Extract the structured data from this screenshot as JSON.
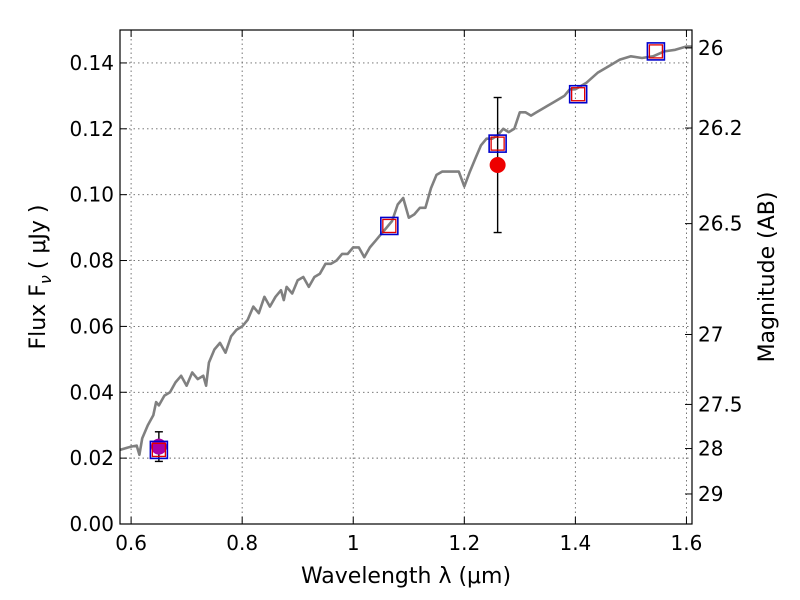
{
  "chart_data": {
    "type": "line",
    "xlabel": "Wavelength  λ (μm)",
    "ylabel": "Flux  F",
    "ylabel_sub": "ν",
    "ylabel_unit": "( μJy )",
    "y2label": "Magnitude (AB)",
    "xlim": [
      0.58,
      1.61
    ],
    "ylim": [
      0.0,
      0.15
    ],
    "grid": true,
    "x_ticks": [
      0.6,
      0.8,
      1.0,
      1.2,
      1.4,
      1.6
    ],
    "x_tick_labels": [
      "0.6",
      "0.8",
      "1",
      "1.2",
      "1.4",
      "1.6"
    ],
    "y_ticks": [
      0.0,
      0.02,
      0.04,
      0.06,
      0.08,
      0.1,
      0.12,
      0.14
    ],
    "y_tick_labels": [
      "0.00",
      "0.02",
      "0.04",
      "0.06",
      "0.08",
      "0.10",
      "0.12",
      "0.14"
    ],
    "y2_ticks": [
      26,
      26.2,
      26.5,
      27,
      27.5,
      28,
      29
    ],
    "y2_tick_labels": [
      "26",
      "26.2",
      "26.5",
      "27",
      "27.5",
      "28",
      "29"
    ],
    "colors": {
      "spectrum": "#808080",
      "model_points": "#e00000",
      "filter_box": "#0000cc",
      "red_point": "#ee0000",
      "magenta_point": "#aa00aa",
      "grid": "#666666"
    },
    "spectrum": [
      [
        0.58,
        0.0225
      ],
      [
        0.6,
        0.0235
      ],
      [
        0.61,
        0.0238
      ],
      [
        0.615,
        0.021
      ],
      [
        0.62,
        0.026
      ],
      [
        0.63,
        0.03
      ],
      [
        0.64,
        0.033
      ],
      [
        0.645,
        0.037
      ],
      [
        0.65,
        0.036
      ],
      [
        0.66,
        0.039
      ],
      [
        0.67,
        0.04
      ],
      [
        0.68,
        0.043
      ],
      [
        0.69,
        0.045
      ],
      [
        0.7,
        0.042
      ],
      [
        0.71,
        0.046
      ],
      [
        0.72,
        0.044
      ],
      [
        0.73,
        0.045
      ],
      [
        0.735,
        0.042
      ],
      [
        0.74,
        0.049
      ],
      [
        0.75,
        0.053
      ],
      [
        0.76,
        0.055
      ],
      [
        0.77,
        0.052
      ],
      [
        0.78,
        0.057
      ],
      [
        0.79,
        0.059
      ],
      [
        0.8,
        0.06
      ],
      [
        0.81,
        0.062
      ],
      [
        0.82,
        0.066
      ],
      [
        0.83,
        0.064
      ],
      [
        0.84,
        0.069
      ],
      [
        0.85,
        0.066
      ],
      [
        0.86,
        0.069
      ],
      [
        0.87,
        0.071
      ],
      [
        0.875,
        0.068
      ],
      [
        0.88,
        0.072
      ],
      [
        0.89,
        0.07
      ],
      [
        0.9,
        0.074
      ],
      [
        0.91,
        0.075
      ],
      [
        0.92,
        0.072
      ],
      [
        0.93,
        0.075
      ],
      [
        0.94,
        0.076
      ],
      [
        0.95,
        0.079
      ],
      [
        0.96,
        0.079
      ],
      [
        0.97,
        0.08
      ],
      [
        0.98,
        0.082
      ],
      [
        0.99,
        0.082
      ],
      [
        1.0,
        0.084
      ],
      [
        1.01,
        0.084
      ],
      [
        1.02,
        0.081
      ],
      [
        1.03,
        0.084
      ],
      [
        1.04,
        0.086
      ],
      [
        1.05,
        0.088
      ],
      [
        1.06,
        0.09
      ],
      [
        1.07,
        0.092
      ],
      [
        1.08,
        0.097
      ],
      [
        1.09,
        0.099
      ],
      [
        1.1,
        0.093
      ],
      [
        1.11,
        0.094
      ],
      [
        1.12,
        0.096
      ],
      [
        1.13,
        0.096
      ],
      [
        1.14,
        0.102
      ],
      [
        1.15,
        0.106
      ],
      [
        1.16,
        0.107
      ],
      [
        1.17,
        0.107
      ],
      [
        1.18,
        0.107
      ],
      [
        1.19,
        0.107
      ],
      [
        1.2,
        0.1025
      ],
      [
        1.21,
        0.107
      ],
      [
        1.22,
        0.111
      ],
      [
        1.23,
        0.115
      ],
      [
        1.24,
        0.117
      ],
      [
        1.25,
        0.117
      ],
      [
        1.26,
        0.118
      ],
      [
        1.27,
        0.12
      ],
      [
        1.28,
        0.119
      ],
      [
        1.29,
        0.12
      ],
      [
        1.3,
        0.125
      ],
      [
        1.31,
        0.125
      ],
      [
        1.32,
        0.124
      ],
      [
        1.33,
        0.125
      ],
      [
        1.34,
        0.126
      ],
      [
        1.35,
        0.127
      ],
      [
        1.36,
        0.128
      ],
      [
        1.37,
        0.129
      ],
      [
        1.38,
        0.13
      ],
      [
        1.39,
        0.132
      ],
      [
        1.4,
        0.132
      ],
      [
        1.42,
        0.134
      ],
      [
        1.44,
        0.137
      ],
      [
        1.46,
        0.139
      ],
      [
        1.48,
        0.141
      ],
      [
        1.5,
        0.142
      ],
      [
        1.52,
        0.1415
      ],
      [
        1.54,
        0.142
      ],
      [
        1.56,
        0.1435
      ],
      [
        1.58,
        0.144
      ],
      [
        1.6,
        0.145
      ],
      [
        1.61,
        0.145
      ]
    ],
    "filter_points": [
      {
        "x": 0.65,
        "model": 0.0225
      },
      {
        "x": 1.065,
        "model": 0.0905
      },
      {
        "x": 1.26,
        "model": 0.1155
      },
      {
        "x": 1.405,
        "model": 0.1305
      },
      {
        "x": 1.545,
        "model": 0.1435
      }
    ],
    "observations": [
      {
        "x": 0.65,
        "y": 0.0235,
        "yerr": 0.0045,
        "color": "magenta"
      },
      {
        "x": 1.26,
        "y": 0.109,
        "yerr": 0.0205,
        "color": "red"
      }
    ]
  }
}
